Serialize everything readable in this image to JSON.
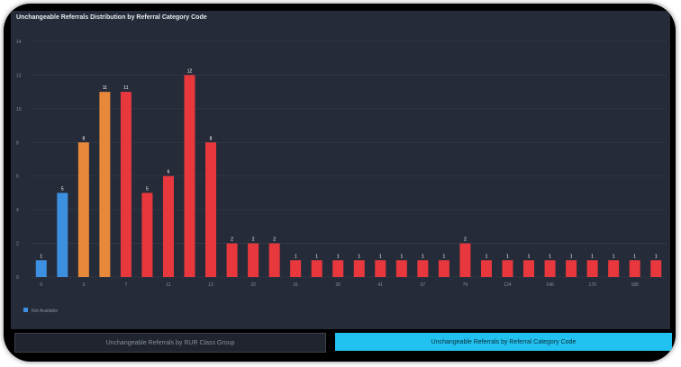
{
  "tabs": [
    {
      "label": "Unchangeable Referrals by RUR Class Group"
    },
    {
      "label": "Unchangeable Referrals by Referral Category Code"
    }
  ],
  "chart_data": {
    "type": "bar",
    "title": "Unchangeable Referrals Distribution by Referral Category Code",
    "ylim": [
      0,
      14
    ],
    "yticks": [
      0,
      2,
      4,
      6,
      8,
      10,
      12,
      14
    ],
    "grid": true,
    "legend_position": "bottom-left",
    "legend": [
      {
        "name": "Not Available",
        "color": "#3d8fe0"
      }
    ],
    "x_tick_labels": [
      "0",
      "3",
      "7",
      "11",
      "13",
      "22",
      "31",
      "35",
      "41",
      "57",
      "79",
      "124",
      "146",
      "179",
      "188"
    ],
    "values": [
      1,
      5,
      8,
      11,
      11,
      5,
      6,
      12,
      8,
      2,
      2,
      2,
      1,
      1,
      1,
      1,
      1,
      1,
      1,
      1,
      2,
      1,
      1,
      1,
      1,
      1,
      1,
      1,
      1,
      1
    ],
    "colors": [
      "#3d8fe0",
      "#3d8fe0",
      "#e8883a",
      "#e8883a",
      "#e8383d",
      "#e8383d",
      "#e8383d",
      "#e8383d",
      "#e8383d",
      "#e8383d",
      "#e8383d",
      "#e8383d",
      "#e8383d",
      "#e8383d",
      "#e8383d",
      "#e8383d",
      "#e8383d",
      "#e8383d",
      "#e8383d",
      "#e8383d",
      "#e8383d",
      "#e8383d",
      "#e8383d",
      "#e8383d",
      "#e8383d",
      "#e8383d",
      "#e8383d",
      "#e8383d",
      "#e8383d",
      "#e8383d"
    ]
  }
}
